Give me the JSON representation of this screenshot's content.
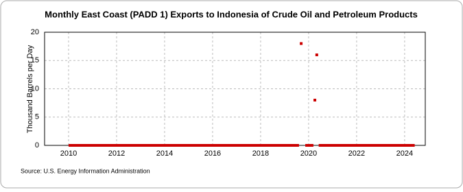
{
  "chart_data": {
    "type": "line",
    "title": "Monthly East Coast (PADD 1) Exports to Indonesia of Crude Oil and Petroleum Products",
    "y_label": "Thousand Barrels per Day",
    "source": "Source: U.S. Energy Information Administration",
    "x": [
      2010,
      2019.6,
      2019.65,
      2019.69,
      2019.78,
      2019.86,
      2020.2,
      2020.23,
      2020.26,
      2020.3,
      2020.34,
      2020.38,
      2020.42,
      2024.42
    ],
    "series": [
      {
        "name": "Exports",
        "color": "#cc0000",
        "values": [
          0,
          0,
          null,
          18,
          null,
          0,
          0,
          null,
          8,
          null,
          16,
          null,
          0,
          0
        ]
      }
    ],
    "xlim": [
      2009,
      2024.86
    ],
    "xticks": [
      2010,
      2012,
      2014,
      2016,
      2018,
      2020,
      2022,
      2024
    ],
    "ylim": [
      0,
      20
    ],
    "yticks": [
      0,
      5,
      10,
      15,
      20
    ],
    "grid": true
  }
}
